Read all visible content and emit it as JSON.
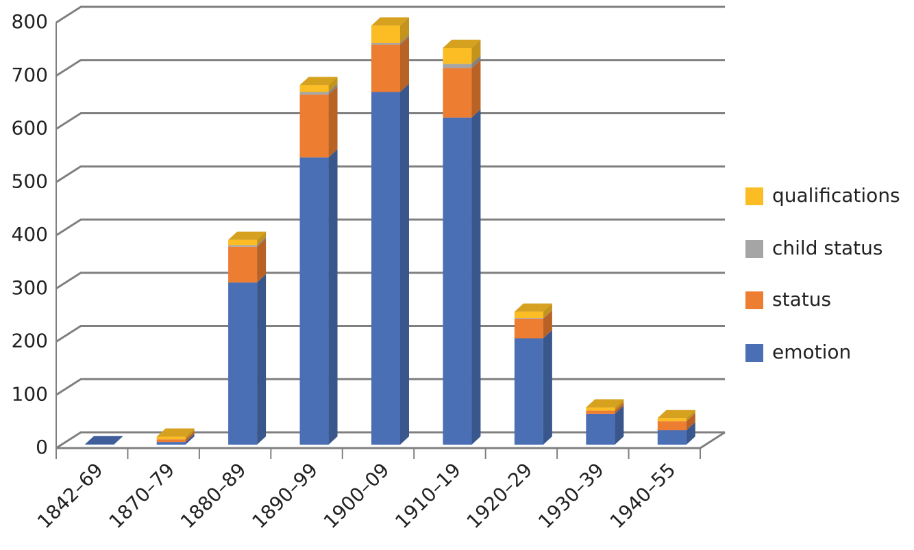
{
  "chart_data": {
    "type": "bar",
    "stacked": true,
    "categories": [
      "1842–69",
      "1870–79",
      "1880–89",
      "1890–99",
      "1900–09",
      "1910–19",
      "1920–29",
      "1930–39",
      "1940–55"
    ],
    "series": [
      {
        "name": "emotion",
        "color": "#4a6fb5",
        "values": [
          1,
          5,
          305,
          540,
          663,
          615,
          200,
          58,
          27
        ]
      },
      {
        "name": "status",
        "color": "#ed7d31",
        "values": [
          0,
          5,
          67,
          118,
          89,
          93,
          37,
          6,
          17
        ]
      },
      {
        "name": "child status",
        "color": "#a5a5a5",
        "values": [
          0,
          0,
          3,
          5,
          3,
          8,
          1,
          0,
          0
        ]
      },
      {
        "name": "qualifications",
        "color": "#fbbd23",
        "values": [
          0,
          5,
          10,
          13,
          33,
          30,
          12,
          6,
          6
        ]
      }
    ],
    "ylim": [
      0,
      800
    ],
    "yticks": [
      0,
      100,
      200,
      300,
      400,
      500,
      600,
      700,
      800
    ],
    "grid": true,
    "legend": "right"
  }
}
